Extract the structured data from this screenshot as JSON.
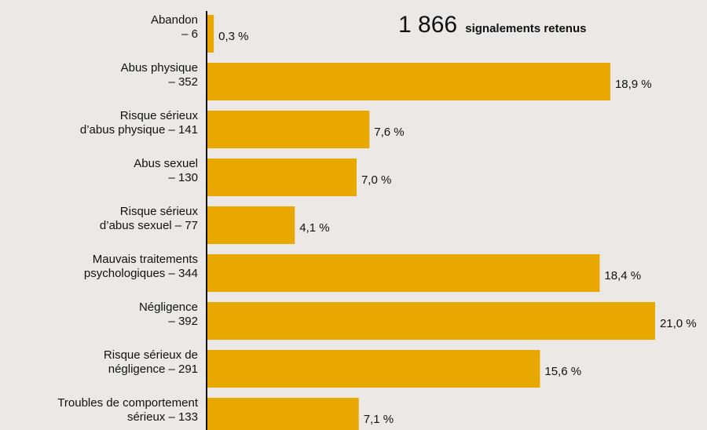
{
  "chart_data": {
    "type": "bar",
    "orientation": "horizontal",
    "title": {
      "number": "1 866",
      "text": "signalements retenus"
    },
    "categories": [
      "Abandon\n– 6",
      "Abus physique\n– 352",
      "Risque sérieux\nd’abus physique – 141",
      "Abus sexuel\n– 130",
      "Risque sérieux\nd’abus sexuel – 77",
      "Mauvais traitements\npsychologiques – 344",
      "Négligence\n– 392",
      "Risque sérieux de\nnégligence – 291",
      "Troubles de comportement\nsérieux – 133"
    ],
    "values": [
      0.3,
      18.9,
      7.6,
      7.0,
      4.1,
      18.4,
      21.0,
      15.6,
      7.1
    ],
    "value_labels": [
      "0,3 %",
      "18,9 %",
      "7,6 %",
      "7,0 %",
      "4,1 %",
      "18,4 %",
      "21,0 %",
      "15,6 %",
      "7,1 %"
    ],
    "color": "#e8a800"
  }
}
